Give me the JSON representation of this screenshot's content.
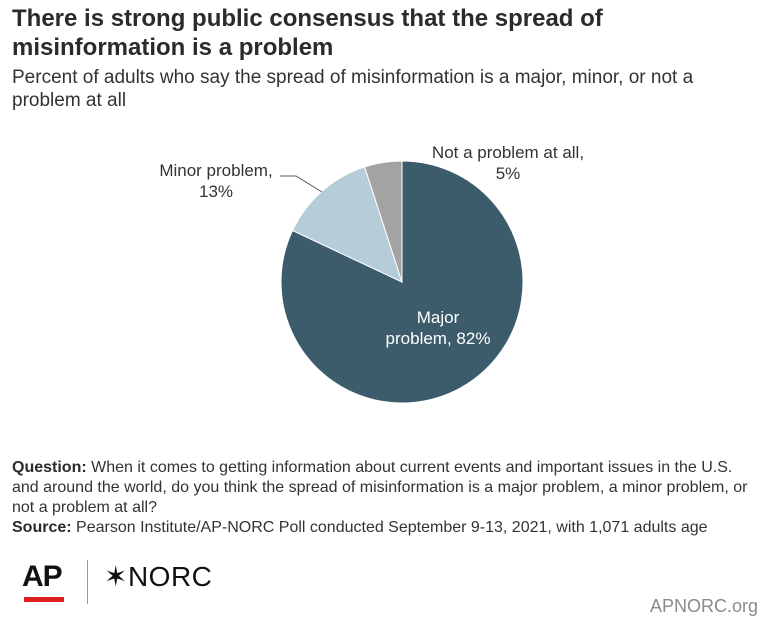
{
  "title": "There is strong public consensus that the spread of misinformation is a problem",
  "subtitle": "Percent of adults who say the spread of misinformation is a major, minor, or not a problem at all",
  "chart_data": {
    "type": "pie",
    "slices": [
      {
        "label": "Major problem, 82%",
        "value": 82,
        "color": "#3c5b6b"
      },
      {
        "label": "Minor problem, 13%",
        "value": 13,
        "color": "#b6ccd8"
      },
      {
        "label": "Not a problem at all, 5%",
        "value": 5,
        "color": "#a3a3a3"
      }
    ]
  },
  "labels": {
    "major_line1": "Major",
    "major_line2": "problem, 82%",
    "minor_line1": "Minor problem,",
    "minor_line2": "13%",
    "not_line1": "Not a problem at all,",
    "not_line2": "5%"
  },
  "footnote": {
    "question_label": "Question:",
    "question_text": "When it comes to getting information about current events and important issues in the U.S. and around the world, do you think the spread of misinformation is a major problem, a minor problem, or not a problem at all?",
    "source_label": "Source:",
    "source_text": "Pearson Institute/AP-NORC Poll conducted September 9-13, 2021, with 1,071 adults age"
  },
  "branding": {
    "ap_logo": "AP",
    "norc_logo": "✶NORC",
    "site": "APNORC.org",
    "ap_accent": "#e02020"
  }
}
